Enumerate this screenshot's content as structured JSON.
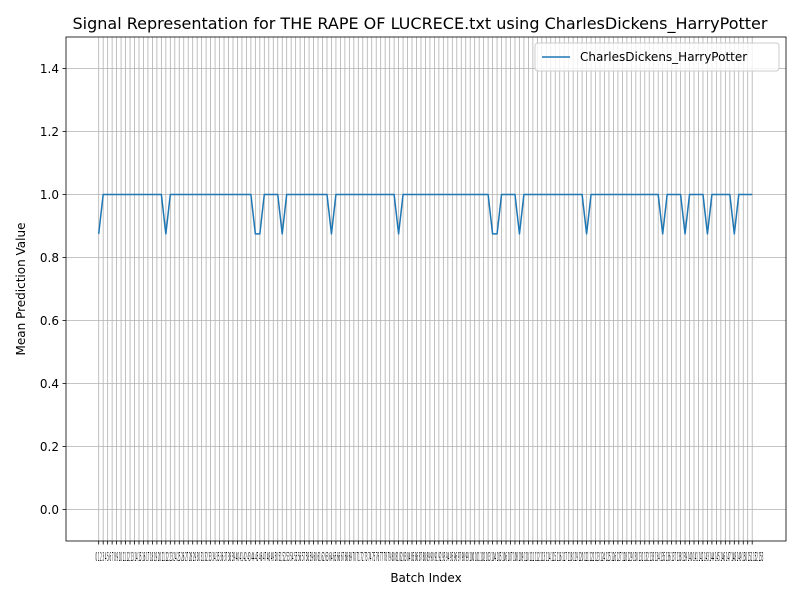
{
  "chart_data": {
    "type": "line",
    "title": "Signal Representation for THE RAPE OF LUCRECE.txt using CharlesDickens_HarryPotter",
    "xlabel": "Batch Index",
    "ylabel": "Mean Prediction Value",
    "ylim": [
      -0.1,
      1.5
    ],
    "yticks": [
      "0.0",
      "0.2",
      "0.4",
      "0.6",
      "0.8",
      "1.0",
      "1.2",
      "1.4"
    ],
    "grid": true,
    "legend_position": "top-right",
    "x_tick_text": "0 1 2 3 4 5 6 7 8 9 10 11 12 13 14 15 16 17 18 19 20 21 22 23 24 25 26 27 28 29 30 31 32 33 34 35 36 37 38 39 40 41 42 43 44 45 46 47 48 49 50 51 52 53 54 55 56 57 58 59 60 61 62 63 64 65 66 67 68 69 70 71 72 73 74 75 76 77 78 79 80 81 82 83 84 85 86 87 88 89 90 91 92 93 94 95 96 97 98 99 100 101 102 103 104 105 106 107 108 109 110 111 112 113 114 115 116 117 118 119 120 121 122 123 124 125 126 127 128 129 130 131 132 133 134 135 136 137 138 139 140 141 142 143 144 145 146 147 148 149 150 151 152 153",
    "series": [
      {
        "name": "CharlesDickens_HarryPotter",
        "color": "#1f77b4",
        "values": [
          0.875,
          1,
          1,
          1,
          1,
          1,
          1,
          1,
          1,
          1,
          1,
          1,
          1,
          1,
          1,
          0.875,
          1,
          1,
          1,
          1,
          1,
          1,
          1,
          1,
          1,
          1,
          1,
          1,
          1,
          1,
          1,
          1,
          1,
          1,
          1,
          0.875,
          0.875,
          1,
          1,
          1,
          1,
          0.875,
          1,
          1,
          1,
          1,
          1,
          1,
          1,
          1,
          1,
          1,
          0.875,
          1,
          1,
          1,
          1,
          1,
          1,
          1,
          1,
          1,
          1,
          1,
          1,
          1,
          1,
          0.875,
          1,
          1,
          1,
          1,
          1,
          1,
          1,
          1,
          1,
          1,
          1,
          1,
          1,
          1,
          1,
          1,
          1,
          1,
          1,
          1,
          0.875,
          0.875,
          1,
          1,
          1,
          1,
          0.875,
          1,
          1,
          1,
          1,
          1,
          1,
          1,
          1,
          1,
          1,
          1,
          1,
          1,
          1,
          0.875,
          1,
          1,
          1,
          1,
          1,
          1,
          1,
          1,
          1,
          1,
          1,
          1,
          1,
          1,
          1,
          1,
          0.875,
          1,
          1,
          1,
          1,
          0.875,
          1,
          1,
          1,
          1,
          0.875,
          1,
          1,
          1,
          1,
          1,
          0.875,
          1,
          1,
          1,
          1
        ]
      }
    ]
  }
}
